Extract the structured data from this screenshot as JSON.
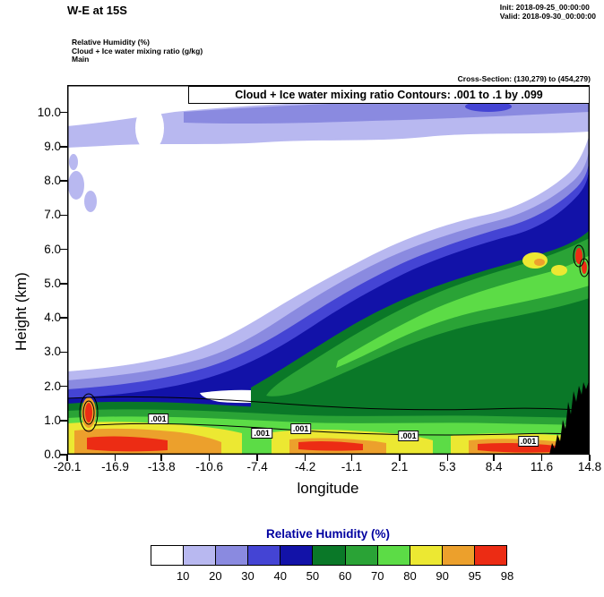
{
  "header": {
    "plot_title": "W-E at 15S",
    "init": "Init: 2018-09-25_00:00:00",
    "valid": "Valid: 2018-09-30_00:00:00",
    "field_line1": "Relative Humidity  (%)",
    "field_line2": "Cloud + Ice water mixing ratio  (g/kg)",
    "field_line3": "Main",
    "cross_section": "Cross-Section: (130,279) to (454,279)"
  },
  "chart_data": {
    "type": "heatmap",
    "subtype": "filled-contour-vertical-cross-section",
    "title": "Cloud + Ice water mixing ratio Contours: .001 to .1 by .099",
    "xlabel": "longitude",
    "ylabel": "Height (km)",
    "x_ticks": [
      "-20.1",
      "-16.9",
      "-13.8",
      "-10.6",
      "-7.4",
      "-4.2",
      "-1.1",
      "2.1",
      "5.3",
      "8.4",
      "11.6",
      "14.8"
    ],
    "y_ticks": [
      "0.0",
      "1.0",
      "2.0",
      "3.0",
      "4.0",
      "5.0",
      "6.0",
      "7.0",
      "8.0",
      "9.0",
      "10.0"
    ],
    "xlim": [
      -20.1,
      14.8
    ],
    "ylim": [
      0,
      10.8
    ],
    "grid": false,
    "shaded_field": "Relative Humidity (%)",
    "shade_levels": [
      10,
      20,
      30,
      40,
      50,
      60,
      70,
      80,
      90,
      95,
      98
    ],
    "shade_colors": [
      "#ffffff",
      "#b8b8f0",
      "#8a8ae0",
      "#4444d4",
      "#1212a8",
      "#0a7828",
      "#2aa336",
      "#5cdc46",
      "#ece832",
      "#eca02c",
      "#ec2c14"
    ],
    "contour_field": "Cloud + Ice water mixing ratio (g/kg)",
    "contour_levels": [
      0.001,
      0.1
    ],
    "contour_interval": 0.099,
    "contour_labels": [
      {
        "text": ".001",
        "lon": -14.0,
        "km": 1.05
      },
      {
        "text": ".001",
        "lon": -7.1,
        "km": 0.63
      },
      {
        "text": ".001",
        "lon": -4.5,
        "km": 0.76
      },
      {
        "text": ".001",
        "lon": 2.7,
        "km": 0.55
      },
      {
        "text": ".001",
        "lon": 10.7,
        "km": 0.39
      }
    ],
    "notes": "Very moist layer (RH 80-98+, green/yellow/orange/red) hugging the surface 0-1.5 km across all longitudes; sloping moist plume (RH 40-80, blue/green) rising eastward from ~2 km near -10 lon to ~7 km near 14.8 lon; thin elevated moist band (RH 20-40, lavender) near 9-10.5 km spanning the domain; small cloud-water maxima (.001 contours) in the boundary layer and near 5-6 km at the east edge; black terrain silhouette at the eastern end up to ~2 km."
  },
  "colorbar": {
    "title": "Relative Humidity  (%)",
    "tick_labels": [
      "10",
      "20",
      "30",
      "40",
      "50",
      "60",
      "70",
      "80",
      "90",
      "95",
      "98"
    ]
  }
}
